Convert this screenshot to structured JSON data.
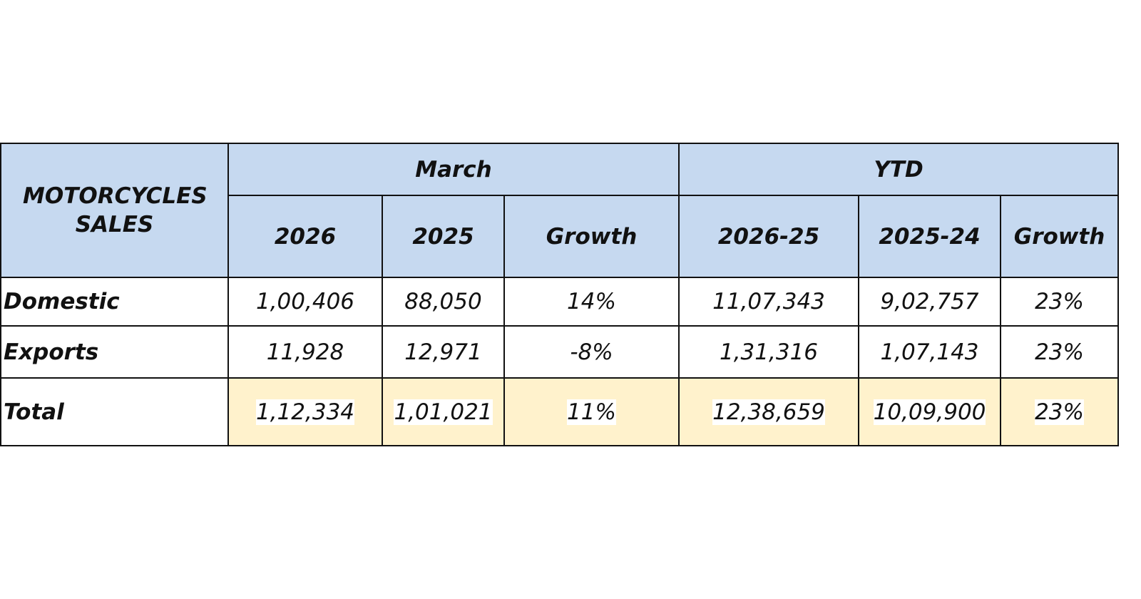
{
  "table": {
    "corner": "MOTORCYCLES SALES",
    "groups": [
      "March",
      "YTD"
    ],
    "columns": [
      "2026",
      "2025",
      "Growth",
      "2026-25",
      "2025-24",
      "Growth"
    ],
    "rows": [
      [
        "Domestic",
        "1,00,406",
        "88,050",
        "14%",
        "11,07,343",
        "9,02,757",
        "23%"
      ],
      [
        "Exports",
        "11,928",
        "12,971",
        "-8%",
        "1,31,316",
        "1,07,143",
        "23%"
      ],
      [
        "Total",
        "1,12,334",
        "1,01,021",
        "11%",
        "12,38,659",
        "10,09,900",
        "23%"
      ]
    ]
  }
}
